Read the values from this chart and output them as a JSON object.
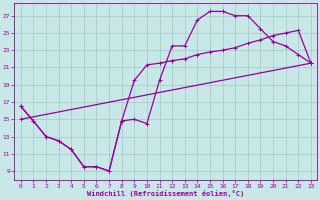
{
  "xlabel": "Windchill (Refroidissement éolien,°C)",
  "bg_color": "#c8e8e8",
  "line_color": "#990099",
  "grid_color": "#b8d8d8",
  "xlim": [
    -0.5,
    23.5
  ],
  "ylim": [
    8.0,
    28.5
  ],
  "yticks": [
    9,
    11,
    13,
    15,
    17,
    19,
    21,
    23,
    25,
    27
  ],
  "xticks": [
    0,
    1,
    2,
    3,
    4,
    5,
    6,
    7,
    8,
    9,
    10,
    11,
    12,
    13,
    14,
    15,
    16,
    17,
    18,
    19,
    20,
    21,
    22,
    23
  ],
  "curve1_x": [
    0,
    1,
    2,
    3,
    4,
    5,
    6,
    7,
    8,
    9,
    10,
    11,
    12,
    13,
    14,
    15,
    16,
    17,
    18,
    19,
    20,
    21,
    22,
    23
  ],
  "curve1_y": [
    16.5,
    14.8,
    13.0,
    12.5,
    11.5,
    9.5,
    9.5,
    9.0,
    14.8,
    19.5,
    21.3,
    21.5,
    21.8,
    22.0,
    22.5,
    22.8,
    23.0,
    23.3,
    23.8,
    24.2,
    24.7,
    25.0,
    25.3,
    21.5
  ],
  "curve2_x": [
    0,
    1,
    2,
    3,
    4,
    5,
    6,
    7,
    8,
    9,
    10,
    11,
    12,
    13,
    14,
    15,
    16,
    17,
    18,
    19,
    20,
    21,
    22,
    23
  ],
  "curve2_y": [
    16.5,
    14.8,
    13.0,
    12.5,
    11.5,
    9.5,
    9.5,
    9.0,
    14.8,
    15.0,
    14.5,
    19.5,
    23.5,
    23.5,
    26.5,
    27.5,
    27.5,
    27.0,
    27.0,
    25.5,
    24.0,
    23.5,
    22.5,
    21.5
  ],
  "curve3_x": [
    0,
    23
  ],
  "curve3_y": [
    15.0,
    21.5
  ],
  "lw": 0.9,
  "ms": 3
}
